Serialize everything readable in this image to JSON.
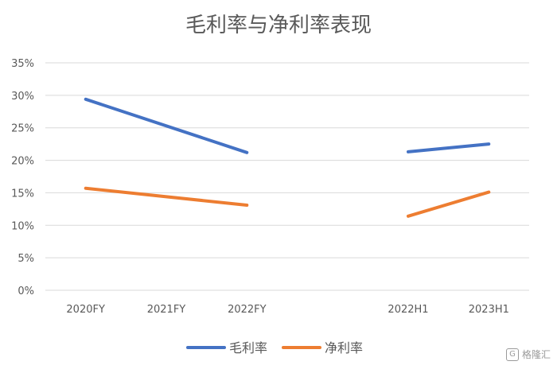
{
  "chart_data": {
    "type": "line",
    "title": "毛利率与净利率表现",
    "categories": [
      "2020FY",
      "2021FY",
      "2022FY",
      "",
      "2022H1",
      "2023H1"
    ],
    "y_ticks": [
      "0%",
      "5%",
      "10%",
      "15%",
      "20%",
      "25%",
      "30%",
      "35%"
    ],
    "ylim": [
      0,
      35
    ],
    "grid": true,
    "legend_position": "bottom",
    "series": [
      {
        "name": "毛利率",
        "color": "#4472C4",
        "values": [
          29.4,
          null,
          21.2,
          null,
          21.3,
          22.5
        ],
        "segments": [
          [
            0,
            2
          ],
          [
            4,
            5
          ]
        ]
      },
      {
        "name": "净利率",
        "color": "#ED7D31",
        "values": [
          15.7,
          null,
          13.1,
          null,
          11.4,
          15.1
        ],
        "segments": [
          [
            0,
            2
          ],
          [
            4,
            5
          ]
        ]
      }
    ]
  },
  "watermark": {
    "text": "格隆汇",
    "icon": "G"
  }
}
